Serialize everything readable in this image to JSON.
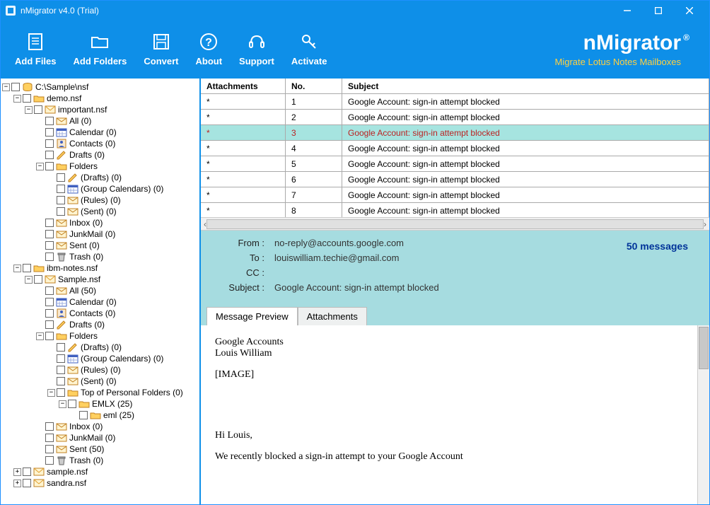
{
  "window": {
    "title": "nMigrator v4.0 (Trial)"
  },
  "toolbar": {
    "addFiles": "Add Files",
    "addFolders": "Add Folders",
    "convert": "Convert",
    "about": "About",
    "support": "Support",
    "activate": "Activate"
  },
  "brand": {
    "name": "nMigrator",
    "reg": "®",
    "tagline": "Migrate Lotus Notes Mailboxes"
  },
  "tree": [
    {
      "l": 0,
      "t": "-",
      "c": 1,
      "i": "db",
      "x": "C:\\Sample\\nsf"
    },
    {
      "l": 1,
      "t": "-",
      "c": 1,
      "i": "fd",
      "x": "demo.nsf"
    },
    {
      "l": 2,
      "t": "-",
      "c": 1,
      "i": "nsf",
      "x": "important.nsf"
    },
    {
      "l": 3,
      "t": "",
      "c": 1,
      "i": "ml",
      "x": "All (0)"
    },
    {
      "l": 3,
      "t": "",
      "c": 1,
      "i": "cal",
      "x": "Calendar (0)"
    },
    {
      "l": 3,
      "t": "",
      "c": 1,
      "i": "con",
      "x": "Contacts (0)"
    },
    {
      "l": 3,
      "t": "",
      "c": 1,
      "i": "dr",
      "x": "Drafts (0)"
    },
    {
      "l": 3,
      "t": "-",
      "c": 1,
      "i": "fd",
      "x": "Folders"
    },
    {
      "l": 4,
      "t": "",
      "c": 1,
      "i": "dr",
      "x": "(Drafts) (0)"
    },
    {
      "l": 4,
      "t": "",
      "c": 1,
      "i": "cal",
      "x": "(Group Calendars) (0)"
    },
    {
      "l": 4,
      "t": "",
      "c": 1,
      "i": "ml",
      "x": "(Rules) (0)"
    },
    {
      "l": 4,
      "t": "",
      "c": 1,
      "i": "ml",
      "x": "(Sent) (0)"
    },
    {
      "l": 3,
      "t": "",
      "c": 1,
      "i": "ml",
      "x": "Inbox (0)"
    },
    {
      "l": 3,
      "t": "",
      "c": 1,
      "i": "ml",
      "x": "JunkMail (0)"
    },
    {
      "l": 3,
      "t": "",
      "c": 1,
      "i": "ml",
      "x": "Sent (0)"
    },
    {
      "l": 3,
      "t": "",
      "c": 1,
      "i": "tr",
      "x": "Trash (0)"
    },
    {
      "l": 1,
      "t": "-",
      "c": 1,
      "i": "fd",
      "x": "ibm-notes.nsf"
    },
    {
      "l": 2,
      "t": "-",
      "c": 1,
      "i": "nsf",
      "x": "Sample.nsf"
    },
    {
      "l": 3,
      "t": "",
      "c": 1,
      "i": "ml",
      "x": "All (50)"
    },
    {
      "l": 3,
      "t": "",
      "c": 1,
      "i": "cal",
      "x": "Calendar (0)"
    },
    {
      "l": 3,
      "t": "",
      "c": 1,
      "i": "con",
      "x": "Contacts (0)"
    },
    {
      "l": 3,
      "t": "",
      "c": 1,
      "i": "dr",
      "x": "Drafts (0)"
    },
    {
      "l": 3,
      "t": "-",
      "c": 1,
      "i": "fd",
      "x": "Folders"
    },
    {
      "l": 4,
      "t": "",
      "c": 1,
      "i": "dr",
      "x": "(Drafts) (0)"
    },
    {
      "l": 4,
      "t": "",
      "c": 1,
      "i": "cal",
      "x": "(Group Calendars) (0)"
    },
    {
      "l": 4,
      "t": "",
      "c": 1,
      "i": "ml",
      "x": "(Rules) (0)"
    },
    {
      "l": 4,
      "t": "",
      "c": 1,
      "i": "ml",
      "x": "(Sent) (0)"
    },
    {
      "l": 4,
      "t": "-",
      "c": 1,
      "i": "fd",
      "x": "Top of Personal Folders (0)"
    },
    {
      "l": 5,
      "t": "-",
      "c": 1,
      "i": "fd",
      "x": "EMLX (25)"
    },
    {
      "l": 6,
      "t": "",
      "c": 1,
      "i": "fd",
      "x": "eml (25)"
    },
    {
      "l": 3,
      "t": "",
      "c": 1,
      "i": "ml",
      "x": "Inbox (0)"
    },
    {
      "l": 3,
      "t": "",
      "c": 1,
      "i": "ml",
      "x": "JunkMail (0)"
    },
    {
      "l": 3,
      "t": "",
      "c": 1,
      "i": "ml",
      "x": "Sent (50)"
    },
    {
      "l": 3,
      "t": "",
      "c": 1,
      "i": "tr",
      "x": "Trash (0)"
    },
    {
      "l": 1,
      "t": "+",
      "c": 1,
      "i": "nsf",
      "x": "sample.nsf"
    },
    {
      "l": 1,
      "t": "+",
      "c": 1,
      "i": "nsf",
      "x": "sandra.nsf"
    }
  ],
  "grid": {
    "cols": {
      "c1": "Attachments",
      "c2": "No.",
      "c3": "Subject"
    },
    "rows": [
      {
        "a": "*",
        "n": "1",
        "s": "Google Account: sign-in attempt blocked",
        "sel": false
      },
      {
        "a": "*",
        "n": "2",
        "s": "Google Account: sign-in attempt blocked",
        "sel": false
      },
      {
        "a": "*",
        "n": "3",
        "s": "Google Account: sign-in attempt blocked",
        "sel": true
      },
      {
        "a": "*",
        "n": "4",
        "s": "Google Account: sign-in attempt blocked",
        "sel": false
      },
      {
        "a": "*",
        "n": "5",
        "s": "Google Account: sign-in attempt blocked",
        "sel": false
      },
      {
        "a": "*",
        "n": "6",
        "s": "Google Account: sign-in attempt blocked",
        "sel": false
      },
      {
        "a": "*",
        "n": "7",
        "s": "Google Account: sign-in attempt blocked",
        "sel": false
      },
      {
        "a": "*",
        "n": "8",
        "s": "Google Account: sign-in attempt blocked",
        "sel": false
      }
    ]
  },
  "header": {
    "fromLbl": "From :",
    "from": "no-reply@accounts.google.com",
    "toLbl": "To :",
    "to": "louiswilliam.techie@gmail.com",
    "ccLbl": "CC :",
    "cc": "",
    "subLbl": "Subject :",
    "sub": "Google Account: sign-in attempt blocked",
    "count": "50 messages"
  },
  "tabs": {
    "preview": "Message Preview",
    "attach": "Attachments"
  },
  "body": {
    "l1": "Google Accounts",
    "l2": "Louis William",
    "l3": "[IMAGE]",
    "l4": "Hi Louis,",
    "l5": "We recently blocked a sign-in attempt to your Google Account"
  },
  "colors": {
    "primary": "#0e8fe8",
    "accent": "#ffd040",
    "headerBg": "#a6dce0",
    "rowSel": "#a6e4e0"
  }
}
